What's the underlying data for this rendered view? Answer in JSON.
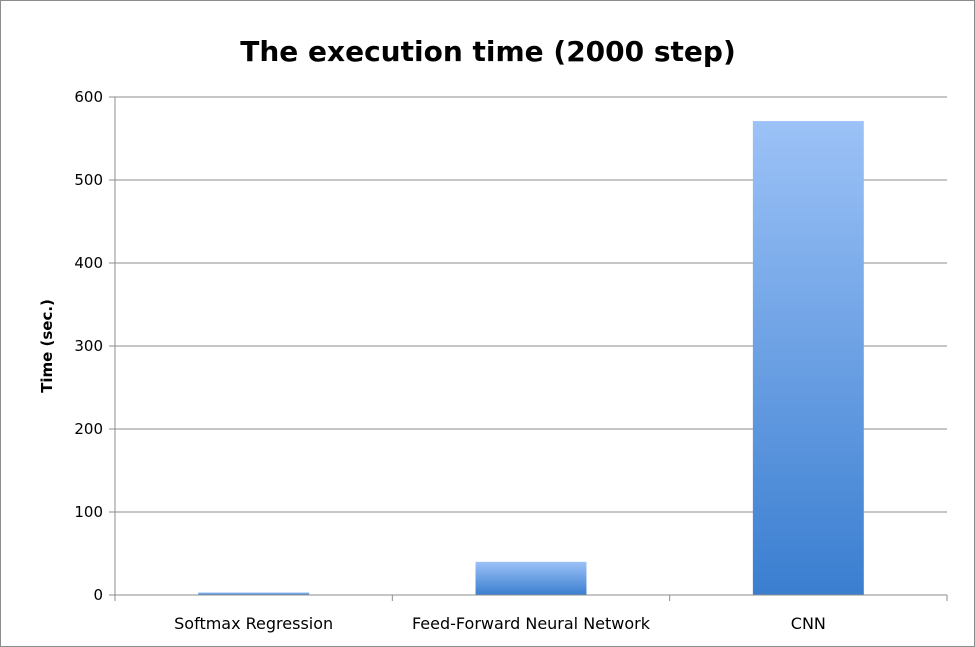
{
  "chart_data": {
    "type": "bar",
    "title": "The execution time (2000 step)",
    "xlabel": "",
    "ylabel": "Time (sec.)",
    "ylim": [
      0,
      600
    ],
    "yticks": [
      0,
      100,
      200,
      300,
      400,
      500,
      600
    ],
    "grid": true,
    "legend": "none",
    "categories": [
      "Softmax Regression",
      "Feed-Forward Neural Network",
      "CNN"
    ],
    "values": [
      3,
      40,
      571
    ],
    "colors": {
      "bar_top": "#9cc2f7",
      "bar_bottom": "#3a7ed0",
      "grid": "#8c8c8c",
      "axis": "#8c8c8c"
    }
  }
}
